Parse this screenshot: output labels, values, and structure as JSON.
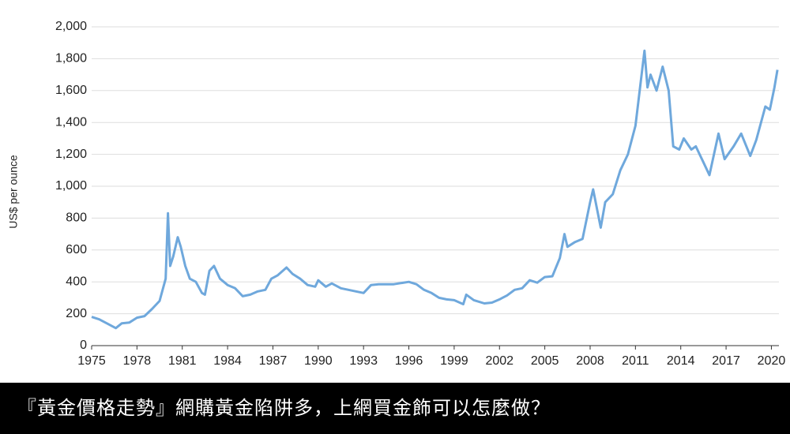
{
  "chart_data": {
    "type": "line",
    "y_label": "US$ per ounce",
    "color": "#6fa8dc",
    "grid": true,
    "xlim": [
      1975,
      2020.5
    ],
    "xticks": [
      1975,
      1978,
      1981,
      1984,
      1987,
      1990,
      1993,
      1996,
      1999,
      2002,
      2005,
      2008,
      2011,
      2014,
      2017,
      2020
    ],
    "ylim": [
      0,
      2000
    ],
    "yticks": [
      0,
      200,
      400,
      600,
      800,
      {
        "value": 1000,
        "label": "1,000"
      },
      {
        "value": 1200,
        "label": "1,200"
      },
      {
        "value": 1400,
        "label": "1,400"
      },
      {
        "value": 1600,
        "label": "1,600"
      },
      {
        "value": 1800,
        "label": "1,800"
      },
      {
        "value": 2000,
        "label": "2,000"
      }
    ],
    "x": [
      1975,
      1975.5,
      1976,
      1976.6,
      1977,
      1977.5,
      1978,
      1978.5,
      1979,
      1979.5,
      1979.9,
      1980.05,
      1980.2,
      1980.4,
      1980.7,
      1980.9,
      1981.2,
      1981.5,
      1981.9,
      1982.3,
      1982.5,
      1982.8,
      1983.1,
      1983.5,
      1984,
      1984.5,
      1985,
      1985.5,
      1986,
      1986.5,
      1986.9,
      1987.3,
      1987.9,
      1988.3,
      1988.8,
      1989.3,
      1989.8,
      1990,
      1990.5,
      1990.9,
      1991.5,
      1992,
      1992.5,
      1993,
      1993.5,
      1994,
      1995,
      1996,
      1996.5,
      1997,
      1997.5,
      1998,
      1998.5,
      1999,
      1999.6,
      1999.8,
      2000.3,
      2001,
      2001.5,
      2002,
      2002.5,
      2003,
      2003.5,
      2004,
      2004.5,
      2005,
      2005.5,
      2006,
      2006.3,
      2006.5,
      2007,
      2007.5,
      2008,
      2008.2,
      2008.7,
      2009,
      2009.5,
      2010,
      2010.5,
      2011,
      2011.6,
      2011.8,
      2012,
      2012.4,
      2012.8,
      2013.2,
      2013.5,
      2013.9,
      2014.2,
      2014.7,
      2015,
      2015.5,
      2015.9,
      2016.5,
      2016.9,
      2017.5,
      2018,
      2018.6,
      2019,
      2019.6,
      2019.9,
      2020.2,
      2020.4
    ],
    "values": [
      180,
      165,
      140,
      110,
      140,
      145,
      175,
      185,
      230,
      280,
      420,
      830,
      500,
      560,
      680,
      620,
      500,
      420,
      400,
      330,
      320,
      470,
      500,
      420,
      380,
      360,
      310,
      320,
      340,
      350,
      420,
      440,
      490,
      450,
      420,
      380,
      370,
      410,
      370,
      390,
      360,
      350,
      340,
      330,
      380,
      385,
      385,
      400,
      385,
      350,
      330,
      300,
      290,
      285,
      260,
      320,
      285,
      265,
      270,
      290,
      315,
      350,
      360,
      410,
      395,
      430,
      435,
      550,
      700,
      620,
      650,
      670,
      900,
      980,
      740,
      900,
      950,
      1100,
      1200,
      1380,
      1850,
      1620,
      1700,
      1600,
      1750,
      1600,
      1250,
      1230,
      1300,
      1230,
      1250,
      1150,
      1070,
      1330,
      1170,
      1250,
      1330,
      1190,
      1290,
      1500,
      1480,
      1620,
      1730
    ]
  },
  "caption": "『黃金價格走勢』網購黃金陷阱多，上網買金飾可以怎麼做？"
}
